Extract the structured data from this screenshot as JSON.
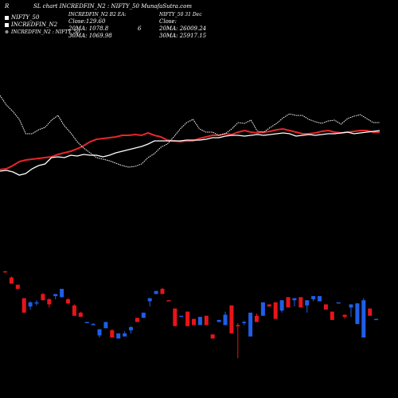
{
  "header": {
    "title": "SL chart INCREDFIN_N2 : NIFTY_50  MunafaSutra.com",
    "left_mark": "R"
  },
  "legend": {
    "items": [
      {
        "label": "NIFTY_50",
        "color": "#ffffff"
      },
      {
        "label": "INCREDFIN_N2",
        "color": "#ffffff"
      },
      {
        "label": "INCREDFIN_N2 : NIFTY_50",
        "color": "#ffffff"
      }
    ]
  },
  "stats": {
    "col1": {
      "line1": "INCREDFIN_N2  B2  EA:",
      "line2": "Close:129.60",
      "line3": "20MA: 1078.8",
      "line4": "30MA: 1069.98"
    },
    "col1_extra": "6",
    "col2": {
      "line1": "NIFTY_50  31 Dec",
      "line2": "Close:",
      "line3": "20MA: 26009.24",
      "line4": "30MA: 25917.15"
    }
  },
  "colors": {
    "background": "#000000",
    "ratio_line": "#ffffff",
    "incredfin_line": "#e8262a",
    "nifty_line": "#ffffff",
    "up_candle": "#1f5ee8",
    "down_candle": "#e8141a"
  },
  "chart_data": [
    {
      "type": "line",
      "title": "SL chart INCREDFIN_N2 : NIFTY_50",
      "x": [
        1,
        2,
        3,
        4,
        5,
        6,
        7,
        8,
        9,
        10,
        11,
        12,
        13,
        14,
        15,
        16,
        17,
        18,
        19,
        20,
        21,
        22,
        23,
        24,
        25,
        26,
        27,
        28,
        29,
        30,
        31,
        32,
        33,
        34,
        35,
        36,
        37,
        38,
        39,
        40,
        41,
        42,
        43,
        44,
        45,
        46,
        47,
        48,
        49,
        50,
        51,
        52,
        53,
        54,
        55,
        56,
        57,
        58,
        59,
        60
      ],
      "series": [
        {
          "name": "INCREDFIN_N2",
          "style": "red",
          "values": [
            37,
            38,
            42,
            47,
            49,
            50,
            51,
            52,
            53,
            56,
            58,
            60,
            63,
            67,
            72,
            75,
            76,
            77,
            78,
            80,
            80,
            81,
            80,
            83,
            80,
            78,
            74,
            73,
            72,
            73,
            73,
            76,
            78,
            80,
            80,
            82,
            81,
            84,
            86,
            84,
            83,
            84,
            85,
            87,
            88,
            86,
            84,
            82,
            82,
            83,
            85,
            86,
            84,
            83,
            84,
            85,
            86,
            86,
            84,
            84
          ]
        },
        {
          "name": "INCREDFIN_N2 : NIFTY_50",
          "style": "white",
          "values": [
            35,
            36,
            34,
            30,
            32,
            38,
            42,
            44,
            52,
            53,
            52,
            55,
            54,
            56,
            55,
            55,
            53,
            55,
            58,
            60,
            62,
            64,
            66,
            69,
            73,
            73,
            73,
            73,
            73,
            74,
            74,
            74,
            75,
            77,
            77,
            79,
            80,
            80,
            79,
            80,
            81,
            80,
            81,
            82,
            83,
            82,
            79,
            80,
            81,
            80,
            81,
            82,
            82,
            83,
            84,
            82,
            83,
            84,
            85,
            86
          ]
        },
        {
          "name": "NIFTY_50",
          "style": "white-dotted",
          "values": [
            130,
            118,
            110,
            100,
            82,
            82,
            87,
            90,
            99,
            105,
            92,
            83,
            72,
            64,
            58,
            52,
            50,
            48,
            45,
            42,
            40,
            41,
            44,
            52,
            57,
            65,
            69,
            78,
            88,
            96,
            100,
            88,
            84,
            84,
            80,
            82,
            88,
            96,
            95,
            99,
            85,
            84,
            90,
            95,
            102,
            107,
            105,
            105,
            100,
            97,
            95,
            98,
            99,
            94,
            101,
            104,
            106,
            101,
            96,
            96
          ]
        }
      ],
      "xlabel": "",
      "ylabel": ""
    },
    {
      "type": "candlestick",
      "title": "",
      "candles": [
        {
          "o": 84,
          "h": 84,
          "l": 83,
          "c": 83,
          "dir": "down"
        },
        {
          "o": 78,
          "h": 79,
          "l": 72,
          "c": 72,
          "dir": "down"
        },
        {
          "o": 71,
          "h": 71,
          "l": 67,
          "c": 67,
          "dir": "down"
        },
        {
          "o": 58,
          "h": 58,
          "l": 44,
          "c": 44,
          "dir": "down"
        },
        {
          "o": 54,
          "h": 55,
          "l": 47,
          "c": 50,
          "dir": "up"
        },
        {
          "o": 54,
          "h": 56,
          "l": 51,
          "c": 53,
          "dir": "up"
        },
        {
          "o": 62,
          "h": 63,
          "l": 56,
          "c": 56,
          "dir": "down"
        },
        {
          "o": 57,
          "h": 58,
          "l": 49,
          "c": 52,
          "dir": "down"
        },
        {
          "o": 60,
          "h": 62,
          "l": 57,
          "c": 62,
          "dir": "up"
        },
        {
          "o": 59,
          "h": 67,
          "l": 59,
          "c": 67,
          "dir": "up"
        },
        {
          "o": 57,
          "h": 58,
          "l": 52,
          "c": 53,
          "dir": "down"
        },
        {
          "o": 51,
          "h": 52,
          "l": 41,
          "c": 41,
          "dir": "down"
        },
        {
          "o": 44,
          "h": 45,
          "l": 40,
          "c": 40,
          "dir": "down"
        },
        {
          "o": 34,
          "h": 35,
          "l": 34,
          "c": 35,
          "dir": "up"
        },
        {
          "o": 33,
          "h": 34,
          "l": 32,
          "c": 33,
          "dir": "up"
        },
        {
          "o": 22,
          "h": 28,
          "l": 20,
          "c": 28,
          "dir": "up"
        },
        {
          "o": 29,
          "h": 35,
          "l": 29,
          "c": 35,
          "dir": "up"
        },
        {
          "o": 27,
          "h": 28,
          "l": 20,
          "c": 20,
          "dir": "down"
        },
        {
          "o": 19,
          "h": 24,
          "l": 19,
          "c": 24,
          "dir": "up"
        },
        {
          "o": 21,
          "h": 26,
          "l": 21,
          "c": 24,
          "dir": "up"
        },
        {
          "o": 27,
          "h": 31,
          "l": 24,
          "c": 30,
          "dir": "up"
        },
        {
          "o": 39,
          "h": 39,
          "l": 35,
          "c": 35,
          "dir": "down"
        },
        {
          "o": 39,
          "h": 44,
          "l": 39,
          "c": 44,
          "dir": "up"
        },
        {
          "o": 55,
          "h": 58,
          "l": 50,
          "c": 58,
          "dir": "up"
        },
        {
          "o": 62,
          "h": 65,
          "l": 62,
          "c": 65,
          "dir": "up"
        },
        {
          "o": 67,
          "h": 68,
          "l": 62,
          "c": 62,
          "dir": "down"
        },
        {
          "o": 56,
          "h": 56,
          "l": 55,
          "c": 55,
          "dir": "down"
        },
        {
          "o": 48,
          "h": 48,
          "l": 31,
          "c": 31,
          "dir": "down"
        },
        {
          "o": 40,
          "h": 41,
          "l": 40,
          "c": 41,
          "dir": "up"
        },
        {
          "o": 45,
          "h": 45,
          "l": 31,
          "c": 31,
          "dir": "down"
        },
        {
          "o": 38,
          "h": 38,
          "l": 32,
          "c": 32,
          "dir": "down"
        },
        {
          "o": 32,
          "h": 40,
          "l": 32,
          "c": 40,
          "dir": "up"
        },
        {
          "o": 41,
          "h": 41,
          "l": 32,
          "c": 32,
          "dir": "down"
        },
        {
          "o": 23,
          "h": 23,
          "l": 19,
          "c": 19,
          "dir": "down"
        },
        {
          "o": 35,
          "h": 37,
          "l": 35,
          "c": 37,
          "dir": "up"
        },
        {
          "o": 32,
          "h": 45,
          "l": 32,
          "c": 42,
          "dir": "up"
        },
        {
          "o": 51,
          "h": 51,
          "l": 24,
          "c": 24,
          "dir": "down"
        },
        {
          "o": 32,
          "h": 34,
          "l": 0,
          "c": 31,
          "dir": "down"
        },
        {
          "o": 35,
          "h": 36,
          "l": 32,
          "c": 35,
          "dir": "up"
        },
        {
          "o": 21,
          "h": 44,
          "l": 21,
          "c": 44,
          "dir": "up"
        },
        {
          "o": 41,
          "h": 43,
          "l": 35,
          "c": 35,
          "dir": "down"
        },
        {
          "o": 41,
          "h": 54,
          "l": 41,
          "c": 54,
          "dir": "up"
        },
        {
          "o": 52,
          "h": 52,
          "l": 50,
          "c": 50,
          "dir": "down"
        },
        {
          "o": 54,
          "h": 54,
          "l": 38,
          "c": 38,
          "dir": "down"
        },
        {
          "o": 46,
          "h": 56,
          "l": 44,
          "c": 56,
          "dir": "up"
        },
        {
          "o": 59,
          "h": 59,
          "l": 49,
          "c": 49,
          "dir": "down"
        },
        {
          "o": 56,
          "h": 58,
          "l": 50,
          "c": 58,
          "dir": "up"
        },
        {
          "o": 59,
          "h": 59,
          "l": 49,
          "c": 49,
          "dir": "down"
        },
        {
          "o": 51,
          "h": 56,
          "l": 44,
          "c": 56,
          "dir": "up"
        },
        {
          "o": 57,
          "h": 60,
          "l": 55,
          "c": 60,
          "dir": "up"
        },
        {
          "o": 55,
          "h": 60,
          "l": 55,
          "c": 60,
          "dir": "up"
        },
        {
          "o": 52,
          "h": 52,
          "l": 47,
          "c": 47,
          "dir": "down"
        },
        {
          "o": 45,
          "h": 45,
          "l": 37,
          "c": 37,
          "dir": "down"
        },
        {
          "o": 54,
          "h": 54,
          "l": 54,
          "c": 54,
          "dir": "up"
        },
        {
          "o": 42,
          "h": 42,
          "l": 38,
          "c": 40,
          "dir": "down"
        },
        {
          "o": 49,
          "h": 52,
          "l": 40,
          "c": 52,
          "dir": "up"
        },
        {
          "o": 33,
          "h": 53,
          "l": 33,
          "c": 53,
          "dir": "up"
        },
        {
          "o": 56,
          "h": 58,
          "l": 20,
          "c": 20,
          "dir": "up"
        },
        {
          "o": 48,
          "h": 48,
          "l": 41,
          "c": 41,
          "dir": "down"
        },
        {
          "o": 38,
          "h": 38,
          "l": 38,
          "c": 38,
          "dir": "up"
        }
      ]
    }
  ]
}
